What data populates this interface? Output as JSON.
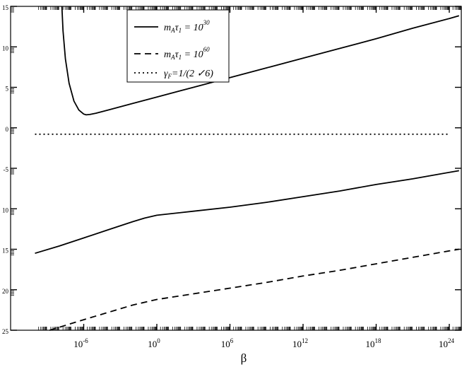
{
  "chart_data": {
    "type": "line",
    "title": "",
    "xlabel": "β",
    "ylabel": "",
    "x_scale": "log10",
    "y_scale": "log10",
    "xlim": [
      1e-10,
      1e+25
    ],
    "ylim": [
      1e-25,
      1000000000000000.0
    ],
    "x_ticks": [
      {
        "exponent": -6,
        "base": "10",
        "sup": "-6"
      },
      {
        "exponent": 0,
        "base": "10",
        "sup": "0"
      },
      {
        "exponent": 6,
        "base": "10",
        "sup": "6"
      },
      {
        "exponent": 12,
        "base": "10",
        "sup": "12"
      },
      {
        "exponent": 18,
        "base": "10",
        "sup": "18"
      },
      {
        "exponent": 24,
        "base": "10",
        "sup": "24"
      }
    ],
    "y_ticks": [
      {
        "exponent": 15,
        "label": "15"
      },
      {
        "exponent": 10,
        "label": "10"
      },
      {
        "exponent": 5,
        "label": "5"
      },
      {
        "exponent": 0,
        "label": "0"
      },
      {
        "exponent": -5,
        "label": "-5"
      },
      {
        "exponent": -10,
        "label": "10"
      },
      {
        "exponent": -15,
        "label": "15"
      },
      {
        "exponent": -20,
        "label": "20"
      },
      {
        "exponent": -25,
        "label": "25"
      }
    ],
    "grid": false,
    "legend_position": "top-center",
    "legend": [
      {
        "pre": "m",
        "sub1": "A",
        "mid": "τ",
        "sub2": "1",
        "post": " = 10",
        "sup": "30",
        "dash": "solid"
      },
      {
        "pre": "m",
        "sub1": "A",
        "mid": "τ",
        "sub2": "1",
        "post": " = 10",
        "sup": "60",
        "dash": "dashed"
      },
      {
        "pre": "γ",
        "sub1": "F",
        "mid": "",
        "sub2": "",
        "post": "=1/(2 ✓6)",
        "sup": "",
        "dash": "dotted"
      }
    ],
    "series": [
      {
        "style": "solid",
        "points": [
          [
            -7.79,
            15.0
          ],
          [
            -7.7,
            12.0
          ],
          [
            -7.5,
            8.5
          ],
          [
            -7.2,
            5.5
          ],
          [
            -6.8,
            3.3
          ],
          [
            -6.4,
            2.2
          ],
          [
            -6.0,
            1.7
          ],
          [
            -5.8,
            1.6
          ],
          [
            -5.5,
            1.65
          ],
          [
            -5.0,
            1.8
          ],
          [
            -4.0,
            2.2
          ],
          [
            -2.0,
            3.0
          ],
          [
            0.0,
            3.8
          ],
          [
            3.0,
            5.0
          ],
          [
            6.0,
            6.2
          ],
          [
            9.0,
            7.4
          ],
          [
            12.0,
            8.6
          ],
          [
            15.0,
            9.8
          ],
          [
            18.0,
            11.0
          ],
          [
            21.0,
            12.3
          ],
          [
            24.0,
            13.5
          ],
          [
            24.8,
            13.85
          ]
        ]
      },
      {
        "style": "solid",
        "points": [
          [
            -10.0,
            -15.5
          ],
          [
            -8.0,
            -14.6
          ],
          [
            -6.0,
            -13.6
          ],
          [
            -4.0,
            -12.6
          ],
          [
            -2.0,
            -11.6
          ],
          [
            -1.0,
            -11.15
          ],
          [
            0.0,
            -10.8
          ],
          [
            3.0,
            -10.3
          ],
          [
            6.0,
            -9.8
          ],
          [
            9.0,
            -9.2
          ],
          [
            12.0,
            -8.5
          ],
          [
            15.0,
            -7.8
          ],
          [
            18.0,
            -7.0
          ],
          [
            21.0,
            -6.3
          ],
          [
            24.0,
            -5.5
          ],
          [
            24.8,
            -5.3
          ]
        ]
      },
      {
        "style": "dashed",
        "points": [
          [
            -8.8,
            -25.0
          ],
          [
            -6.0,
            -23.7
          ],
          [
            -4.0,
            -22.8
          ],
          [
            -2.0,
            -21.9
          ],
          [
            0.0,
            -21.2
          ],
          [
            3.0,
            -20.5
          ],
          [
            6.0,
            -19.8
          ],
          [
            9.0,
            -19.1
          ],
          [
            12.0,
            -18.3
          ],
          [
            15.0,
            -17.6
          ],
          [
            18.0,
            -16.8
          ],
          [
            21.0,
            -16.0
          ],
          [
            24.0,
            -15.2
          ],
          [
            24.8,
            -15.0
          ]
        ]
      },
      {
        "style": "dotted",
        "points": [
          [
            -10.0,
            -0.79
          ],
          [
            24.0,
            -0.79
          ]
        ]
      }
    ]
  }
}
